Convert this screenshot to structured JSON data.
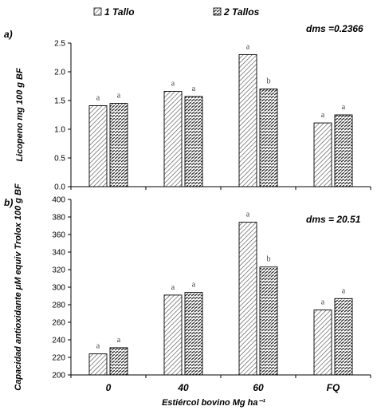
{
  "legend": {
    "series_1": "1 Tallo",
    "series_2": "2 Tallos"
  },
  "xlabel": "Estiércol bovino Mg ha⁻¹",
  "chart_data": [
    {
      "type": "bar",
      "panel_label": "a)",
      "annotation": "dms =0.2366",
      "ylabel": "Licopeno mg 100 g BF",
      "categories": [
        "0",
        "40",
        "60",
        "FQ"
      ],
      "ylim": [
        0,
        2.5
      ],
      "yticks": [
        "0.0",
        "0.5",
        "1.0",
        "1.5",
        "2.0",
        "2.5"
      ],
      "series": [
        {
          "name": "1 Tallo",
          "values": [
            1.41,
            1.66,
            2.3,
            1.11
          ],
          "letters": [
            "a",
            "a",
            "a",
            "a"
          ]
        },
        {
          "name": "2 Tallos",
          "values": [
            1.45,
            1.57,
            1.7,
            1.25
          ],
          "letters": [
            "a",
            "a",
            "b",
            "a"
          ]
        }
      ]
    },
    {
      "type": "bar",
      "panel_label": "b)",
      "annotation": "dms = 20.51",
      "ylabel": "Capacidad antioxidante μM equiv Trolox 100 g BF",
      "categories": [
        "0",
        "40",
        "60",
        "FQ"
      ],
      "ylim": [
        200,
        400
      ],
      "yticks": [
        "200",
        "220",
        "240",
        "260",
        "280",
        "300",
        "320",
        "340",
        "360",
        "380",
        "400"
      ],
      "series": [
        {
          "name": "1 Tallo",
          "values": [
            224,
            291,
            374,
            274
          ],
          "letters": [
            "a",
            "a",
            "a",
            "a"
          ]
        },
        {
          "name": "2 Tallos",
          "values": [
            231,
            294,
            323,
            287
          ],
          "letters": [
            "a",
            "a",
            "b",
            "a"
          ]
        }
      ]
    }
  ]
}
